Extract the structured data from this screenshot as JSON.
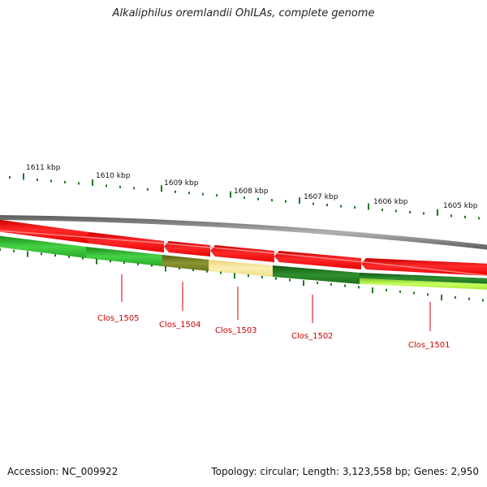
{
  "title": "Alkaliphilus oremlandii OhILAs, complete genome",
  "footer": {
    "accession": "Accession: NC_009922",
    "summary": "Topology: circular; Length: 3,123,558 bp; Genes: 2,950"
  },
  "colors": {
    "backbone": "#7a7a7a",
    "forward_strand": "#ff0000",
    "reverse_strand_light": "#33cc33",
    "reverse_strand_dark": "#1e7a1e",
    "olive": "#6f7a1e",
    "pale_yellow": "#f2e08a",
    "lime": "#aef33a",
    "tick": "#1e7a1e",
    "gene_label": "#cc0000"
  },
  "ruler": {
    "labels": [
      {
        "name": "ruler-label-1611",
        "text": "1611 kbp"
      },
      {
        "name": "ruler-label-1610",
        "text": "1610 kbp"
      },
      {
        "name": "ruler-label-1609",
        "text": "1609 kbp"
      },
      {
        "name": "ruler-label-1608",
        "text": "1608 kbp"
      },
      {
        "name": "ruler-label-1607",
        "text": "1607 kbp"
      },
      {
        "name": "ruler-label-1606",
        "text": "1606 kbp"
      },
      {
        "name": "ruler-label-1605",
        "text": "1605 kbp"
      }
    ]
  },
  "genes": [
    {
      "name": "gene-clos-1505",
      "label": "Clos_1505"
    },
    {
      "name": "gene-clos-1504",
      "label": "Clos_1504"
    },
    {
      "name": "gene-clos-1503",
      "label": "Clos_1503"
    },
    {
      "name": "gene-clos-1502",
      "label": "Clos_1502"
    },
    {
      "name": "gene-clos-1501",
      "label": "Clos_1501"
    }
  ]
}
